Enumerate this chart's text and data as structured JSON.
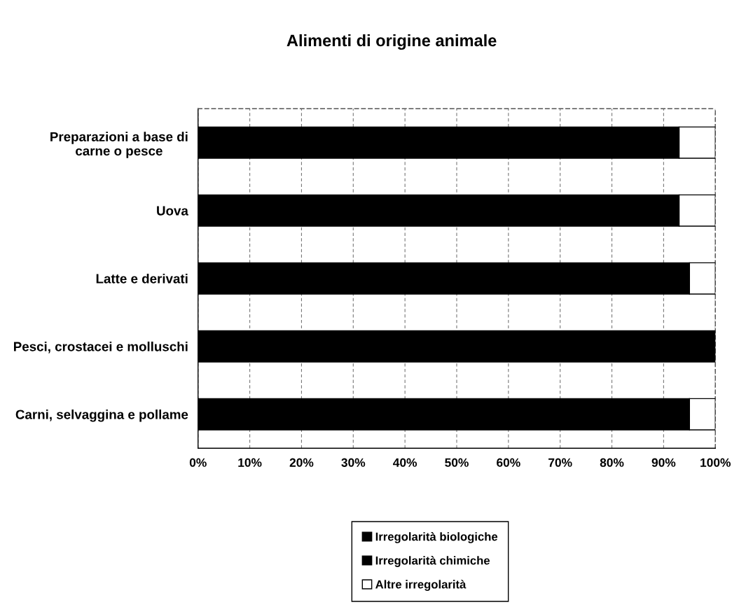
{
  "chart_data": {
    "type": "bar",
    "orientation": "horizontal",
    "stacked": true,
    "title": "Alimenti di origine animale",
    "categories": [
      "Preparazioni a base di\ncarne o pesce",
      "Uova",
      "Latte e derivati",
      "Pesci, crostacei e molluschi",
      "Carni, selvaggina e pollame"
    ],
    "series": [
      {
        "name": "Irregolarità biologiche",
        "color": "#000000",
        "values": [
          93,
          93,
          95,
          100,
          95
        ]
      },
      {
        "name": "Irregolarità chimiche",
        "color": "#000000",
        "values": [
          null,
          null,
          null,
          null,
          null
        ]
      },
      {
        "name": "Altre irregolarità",
        "color": "#ffffff",
        "values": [
          7,
          7,
          5,
          0,
          5
        ]
      }
    ],
    "xlim": [
      0,
      100
    ],
    "xticks": [
      {
        "value": 0,
        "label": "0%"
      },
      {
        "value": 10,
        "label": "10%"
      },
      {
        "value": 20,
        "label": "20%"
      },
      {
        "value": 30,
        "label": "30%"
      },
      {
        "value": 40,
        "label": "40%"
      },
      {
        "value": 50,
        "label": "50%"
      },
      {
        "value": 60,
        "label": "60%"
      },
      {
        "value": 70,
        "label": "70%"
      },
      {
        "value": 80,
        "label": "80%"
      },
      {
        "value": 90,
        "label": "90%"
      },
      {
        "value": 100,
        "label": "100%"
      }
    ],
    "grid": "x",
    "legend": "bottom"
  }
}
